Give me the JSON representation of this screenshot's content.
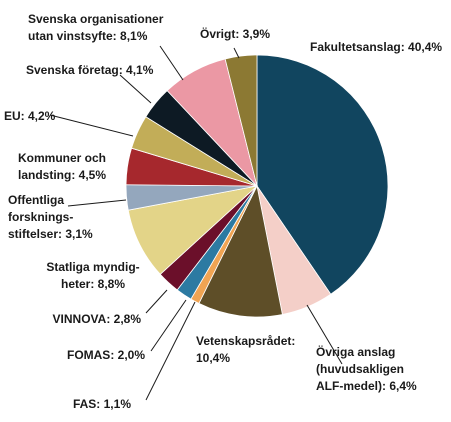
{
  "chart_data": {
    "type": "pie",
    "start_angle_deg": 0,
    "direction": "clockwise",
    "slices": [
      {
        "label_lines": [
          "Fakultetsanslag: 40,4%"
        ],
        "value": 40.4,
        "color": "#11455f"
      },
      {
        "label_lines": [
          "Övriga anslag",
          "(huvudsakligen",
          "ALF-medel): 6,4%"
        ],
        "value": 6.4,
        "color": "#f4cfc8"
      },
      {
        "label_lines": [
          "Vetenskapsrådet:",
          "10,4%"
        ],
        "value": 10.4,
        "color": "#5e4e28"
      },
      {
        "label_lines": [
          "FAS: 1,1%"
        ],
        "value": 1.1,
        "color": "#f0a453"
      },
      {
        "label_lines": [
          "FOMAS: 2,0%"
        ],
        "value": 2.0,
        "color": "#2c7aa2"
      },
      {
        "label_lines": [
          "VINNOVA: 2,8%"
        ],
        "value": 2.8,
        "color": "#6b0f2a"
      },
      {
        "label_lines": [
          "Statliga myndig-",
          "heter: 8,8%"
        ],
        "value": 8.8,
        "color": "#e3d488"
      },
      {
        "label_lines": [
          "Offentliga",
          "forsknings-",
          "stiftelser: 3,1%"
        ],
        "value": 3.1,
        "color": "#94a7bd"
      },
      {
        "label_lines": [
          "Kommuner och",
          "landsting: 4,5%"
        ],
        "value": 4.5,
        "color": "#a6282d"
      },
      {
        "label_lines": [
          "EU: 4,2%"
        ],
        "value": 4.2,
        "color": "#c2ad58"
      },
      {
        "label_lines": [
          "Svenska företag: 4,1%"
        ],
        "value": 4.1,
        "color": "#0d1a24"
      },
      {
        "label_lines": [
          "Svenska organisationer",
          "utan vinstsyfte: 8,1%"
        ],
        "value": 8.1,
        "color": "#eb98a4"
      },
      {
        "label_lines": [
          "Övrigt: 3,9%"
        ],
        "value": 3.9,
        "color": "#8c7933"
      }
    ]
  }
}
